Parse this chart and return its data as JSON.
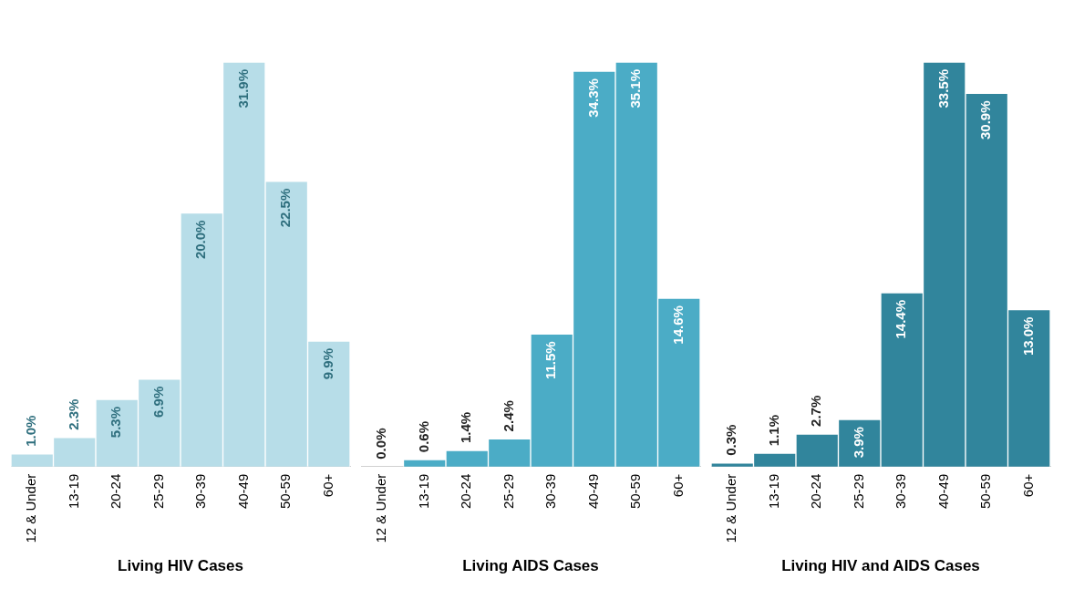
{
  "chart_data": [
    {
      "type": "bar",
      "xlabel": "Living HIV Cases",
      "categories": [
        "12 & Under",
        "13-19",
        "20-24",
        "25-29",
        "30-39",
        "40-49",
        "50-59",
        "60+"
      ],
      "values": [
        1.0,
        2.3,
        5.3,
        6.9,
        20.0,
        31.9,
        22.5,
        9.9
      ],
      "value_labels": [
        "1.0%",
        "2.3%",
        "5.3%",
        "6.9%",
        "20.0%",
        "31.9%",
        "22.5%",
        "9.9%"
      ],
      "color": "#b7dde8",
      "tick_labels": "x",
      "grid": false,
      "legend": false
    },
    {
      "type": "bar",
      "xlabel": "Living AIDS Cases",
      "categories": [
        "12 & Under",
        "13-19",
        "20-24",
        "25-29",
        "30-39",
        "40-49",
        "50-59",
        "60+"
      ],
      "values": [
        0.0,
        0.6,
        1.4,
        2.4,
        11.5,
        34.3,
        35.1,
        14.6
      ],
      "value_labels": [
        "0.0%",
        "0.6%",
        "1.4%",
        "2.4%",
        "11.5%",
        "34.3%",
        "35.1%",
        "14.6%"
      ],
      "color": "#4bacc6",
      "tick_labels": "x",
      "grid": false,
      "legend": false
    },
    {
      "type": "bar",
      "xlabel": "Living HIV and AIDS Cases",
      "categories": [
        "12 & Under",
        "13-19",
        "20-24",
        "25-29",
        "30-39",
        "40-49",
        "50-59",
        "60+"
      ],
      "values": [
        0.3,
        1.1,
        2.7,
        3.9,
        14.4,
        33.5,
        30.9,
        13.0
      ],
      "value_labels": [
        "0.3%",
        "1.1%",
        "2.7%",
        "3.9%",
        "14.4%",
        "33.5%",
        "30.9%",
        "13.0%"
      ],
      "color": "#31859c",
      "tick_labels": "x",
      "grid": false,
      "legend": false
    }
  ]
}
